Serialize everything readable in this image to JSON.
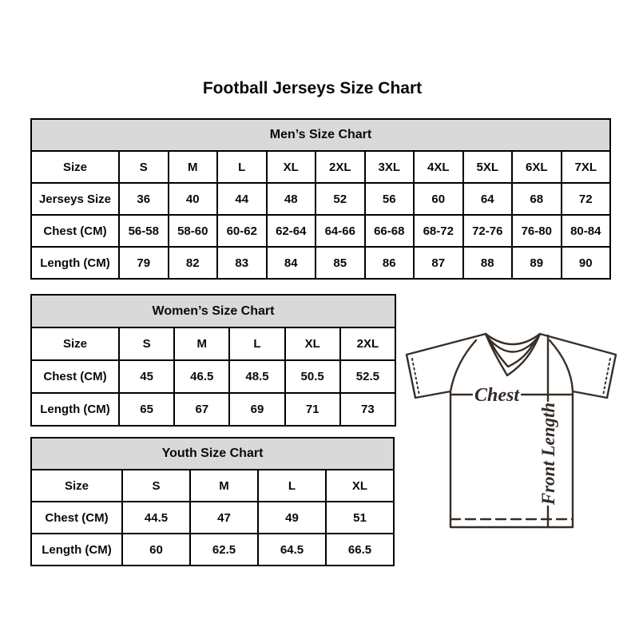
{
  "page": {
    "title": "Football Jerseys Size Chart"
  },
  "colors": {
    "background": "#ffffff",
    "table_header_bg": "#d9d9d9",
    "table_border": "#000000",
    "text": "#0a0a0a",
    "diagram_line": "#362e28"
  },
  "chart_data": [
    {
      "type": "table",
      "id": "mens",
      "title": "Men’s Size Chart",
      "rows": [
        [
          "Size",
          "S",
          "M",
          "L",
          "XL",
          "2XL",
          "3XL",
          "4XL",
          "5XL",
          "6XL",
          "7XL"
        ],
        [
          "Jerseys Size",
          "36",
          "40",
          "44",
          "48",
          "52",
          "56",
          "60",
          "64",
          "68",
          "72"
        ],
        [
          "Chest (CM)",
          "56-58",
          "58-60",
          "60-62",
          "62-64",
          "64-66",
          "66-68",
          "68-72",
          "72-76",
          "76-80",
          "80-84"
        ],
        [
          "Length (CM)",
          "79",
          "82",
          "83",
          "84",
          "85",
          "86",
          "87",
          "88",
          "89",
          "90"
        ]
      ]
    },
    {
      "type": "table",
      "id": "womens",
      "title": "Women’s Size Chart",
      "rows": [
        [
          "Size",
          "S",
          "M",
          "L",
          "XL",
          "2XL"
        ],
        [
          "Chest (CM)",
          "45",
          "46.5",
          "48.5",
          "50.5",
          "52.5"
        ],
        [
          "Length (CM)",
          "65",
          "67",
          "69",
          "71",
          "73"
        ]
      ]
    },
    {
      "type": "table",
      "id": "youth",
      "title": "Youth Size Chart",
      "rows": [
        [
          "Size",
          "S",
          "M",
          "L",
          "XL"
        ],
        [
          "Chest (CM)",
          "44.5",
          "47",
          "49",
          "51"
        ],
        [
          "Length (CM)",
          "60",
          "62.5",
          "64.5",
          "66.5"
        ]
      ]
    }
  ],
  "diagram": {
    "chest_label": "Chest",
    "front_length_label": "Front Length"
  }
}
